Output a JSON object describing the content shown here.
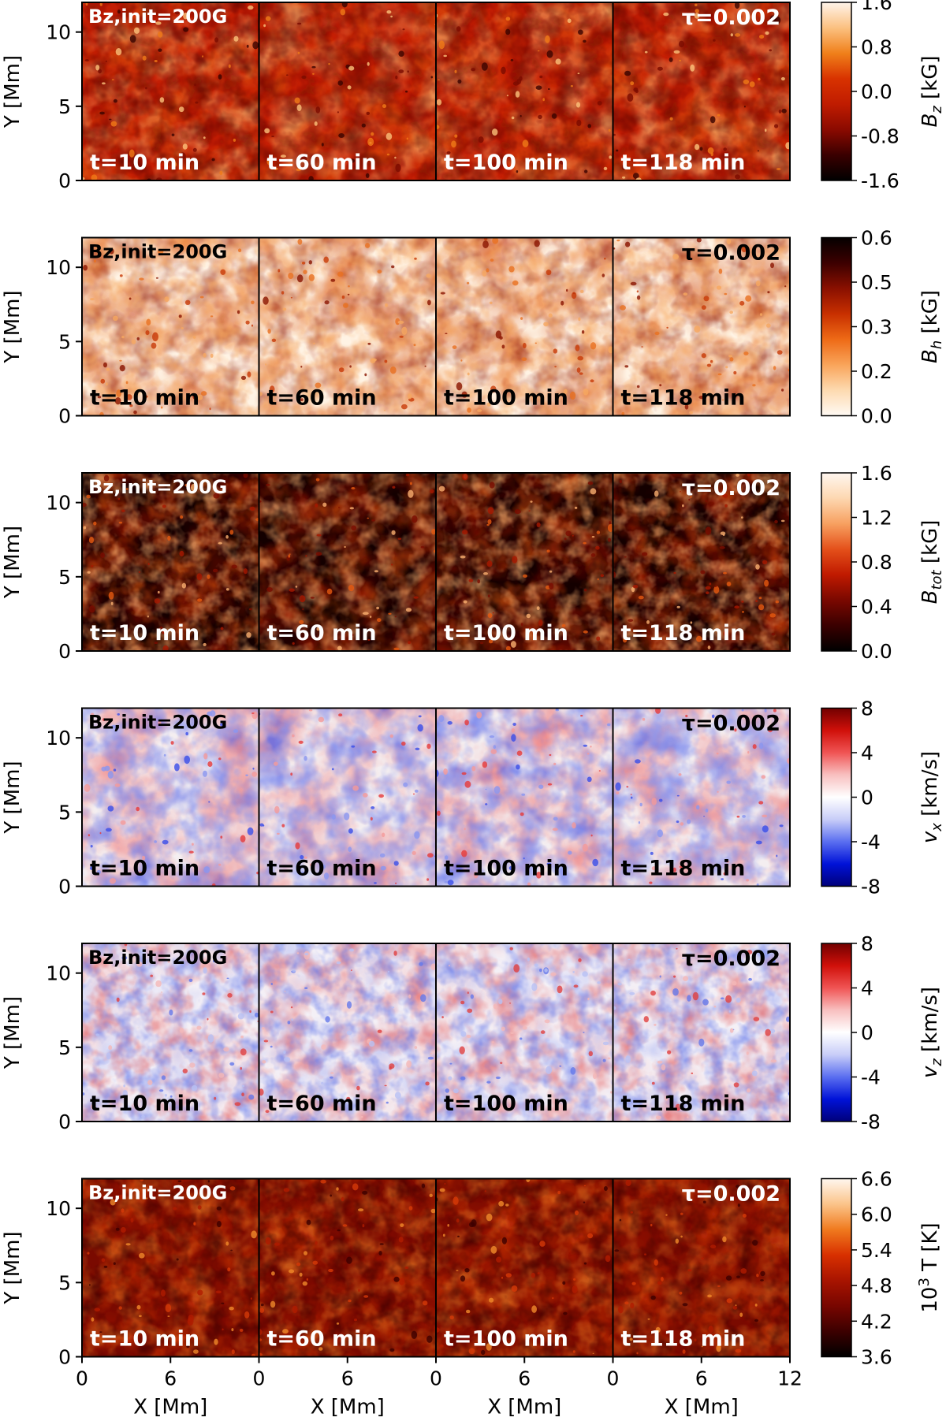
{
  "chart_data": {
    "type": "heatmap",
    "description_free": true,
    "rows": [
      {
        "id": "bz",
        "colorbar_label": "B_z [kG]",
        "label_main": "B",
        "label_sub": "z",
        "label_unit": " [kG]",
        "cbar_ticks": [
          "1.6",
          "0.8",
          "0.0",
          "-0.8",
          "-1.6"
        ],
        "cmap": [
          "#000000",
          "#3a0000",
          "#8b0a00",
          "#c01c00",
          "#d83200",
          "#f0801a",
          "#fbc080",
          "#fff4ea"
        ],
        "bg": "#c41e04",
        "speck": [
          "#f07a18",
          "#fbc27a",
          "#3a0400",
          "#7a0b00"
        ],
        "mode": "bz"
      },
      {
        "id": "bh",
        "colorbar_label": "B_h [kG]",
        "label_main": "B",
        "label_sub": "h",
        "label_unit": " [kG]",
        "cbar_ticks": [
          "0.6",
          "0.5",
          "0.3",
          "0.2",
          "0.0"
        ],
        "cmap": [
          "#fffaf4",
          "#fddab0",
          "#f9a45a",
          "#ee6a16",
          "#c83000",
          "#8a1000",
          "#3c0000",
          "#050000"
        ],
        "bg": "#fff3e4",
        "speck": [
          "#c83a08",
          "#e87020",
          "#8a1400",
          "#f6a860"
        ],
        "mode": "bh"
      },
      {
        "id": "btot",
        "colorbar_label": "B_tot [kG]",
        "label_main": "B",
        "label_sub": "tot",
        "label_unit": " [kG]",
        "cbar_ticks": [
          "1.6",
          "1.2",
          "0.8",
          "0.4",
          "0.0"
        ],
        "cmap": [
          "#000000",
          "#3a0000",
          "#7a0800",
          "#c01a00",
          "#e4501a",
          "#f7a060",
          "#fdd7b0",
          "#fff7f0"
        ],
        "bg": "#140000",
        "speck": [
          "#7a0c00",
          "#a81800",
          "#e65a10",
          "#fbb070"
        ],
        "mode": "btot"
      },
      {
        "id": "vx",
        "colorbar_label": "v_x [km/s]",
        "label_main": "v",
        "label_sub": "x",
        "label_unit": " [km/s]",
        "cbar_ticks": [
          "8",
          "4",
          "0",
          "-4",
          "-8"
        ],
        "cmap": [
          "#00007a",
          "#0012d8",
          "#5a6ef0",
          "#c8cdf8",
          "#ffffff",
          "#f8c0c0",
          "#f05454",
          "#d0100a",
          "#720000"
        ],
        "bg": "#f4eef0",
        "speck": [
          "#e63a3a",
          "#3a4ee8",
          "#f49a9a",
          "#8a96f0"
        ],
        "mode": "vel"
      },
      {
        "id": "vz",
        "colorbar_label": "v_z [km/s]",
        "label_main": "v",
        "label_sub": "z",
        "label_unit": " [km/s]",
        "cbar_ticks": [
          "8",
          "4",
          "0",
          "-4",
          "-8"
        ],
        "cmap": [
          "#00007a",
          "#0012d8",
          "#5a6ef0",
          "#c8cdf8",
          "#ffffff",
          "#f8c0c0",
          "#f05454",
          "#d0100a",
          "#720000"
        ],
        "bg": "#f4f0f6",
        "speck": [
          "#f4b8b8",
          "#b8c0f4",
          "#e04040",
          "#6478ea"
        ],
        "mode": "vz"
      },
      {
        "id": "temp",
        "colorbar_label": "10^3 T [K]",
        "label_main": "10",
        "label_sup": "3",
        "label_unit": " T [K]",
        "cbar_ticks": [
          "6.6",
          "6.0",
          "5.4",
          "4.8",
          "4.2",
          "3.6"
        ],
        "cmap": [
          "#000000",
          "#3c0000",
          "#780600",
          "#a81400",
          "#d83000",
          "#f07a1e",
          "#fbc48a",
          "#fff7ef"
        ],
        "bg": "#7a0a00",
        "speck": [
          "#b01c00",
          "#d63a08",
          "#f08a2a",
          "#3c0000"
        ],
        "mode": "temp"
      }
    ],
    "panels": [
      {
        "time": "t=10 min"
      },
      {
        "time": "t=60 min"
      },
      {
        "time": "t=100 min"
      },
      {
        "time": "t=118 min"
      }
    ],
    "annotation_left": "Bz,init=200G",
    "annotation_right": "τ=0.002",
    "xlabel": "X [Mm]",
    "ylabel": "Y [Mm]",
    "x_ticks": [
      "0",
      "6"
    ],
    "x_tick_last": "12",
    "xlim": [
      0,
      12
    ],
    "ylim": [
      0,
      12
    ],
    "y_ticks": [
      "0",
      "5",
      "10"
    ],
    "y_tick_values": [
      0,
      5,
      10
    ]
  }
}
